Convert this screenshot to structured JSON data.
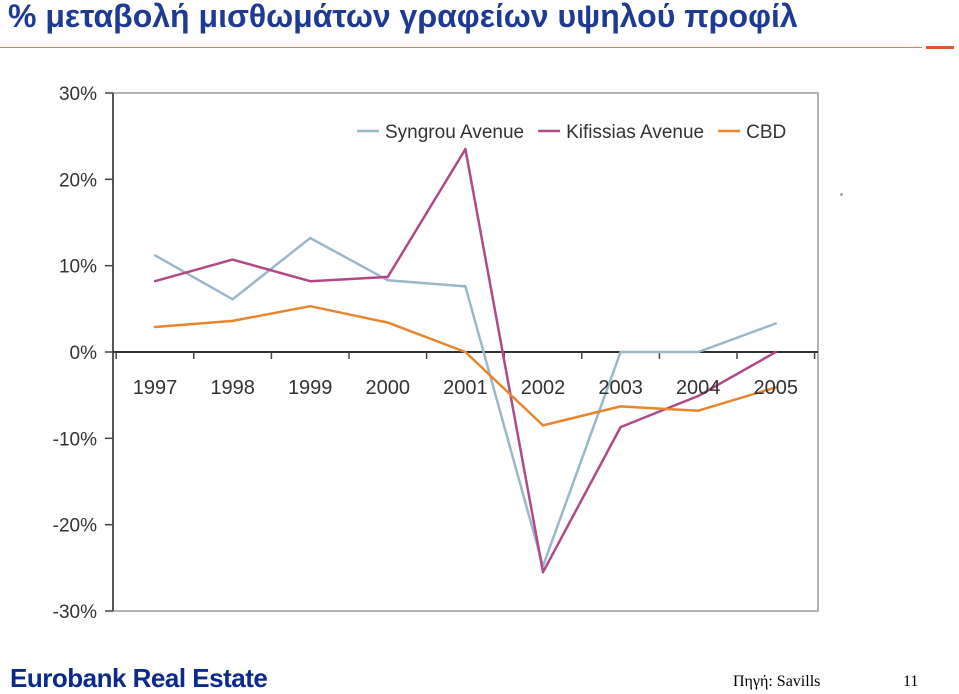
{
  "slide": {
    "title": "% μεταβολή μισθωμάτων γραφείων υψηλού προφίλ",
    "brand": "Eurobank Real Estate",
    "source": "Πηγή: Savills",
    "page_number": "11"
  },
  "colors": {
    "title": "#1f3a93",
    "brand": "#0b2a8a",
    "accent": "#e2572a",
    "syngrou": "#9ab8c8",
    "kifissias": "#b04a86",
    "cbd": "#e8852e"
  },
  "chart_data": {
    "type": "line",
    "categories": [
      "1997",
      "1998",
      "1999",
      "2000",
      "2001",
      "2002",
      "2003",
      "2004",
      "2005"
    ],
    "series": [
      {
        "name": "Syngrou Avenue",
        "values": [
          11.2,
          6.1,
          13.2,
          8.3,
          7.6,
          -24.8,
          0.0,
          0.0,
          3.3
        ]
      },
      {
        "name": "Kifissias Avenue",
        "values": [
          8.2,
          10.7,
          8.2,
          8.7,
          23.5,
          -25.5,
          -8.7,
          -5.1,
          0.0
        ]
      },
      {
        "name": "CBD",
        "values": [
          2.9,
          3.6,
          5.3,
          3.4,
          0.0,
          -8.5,
          -6.3,
          -6.8,
          -4.1
        ]
      }
    ],
    "y_ticks": [
      "30%",
      "20%",
      "10%",
      "0%",
      "-10%",
      "-20%",
      "-30%"
    ],
    "ylim": [
      -30,
      30
    ],
    "legend_position": "top",
    "grid": false,
    "title": "",
    "xlabel": "",
    "ylabel": ""
  }
}
